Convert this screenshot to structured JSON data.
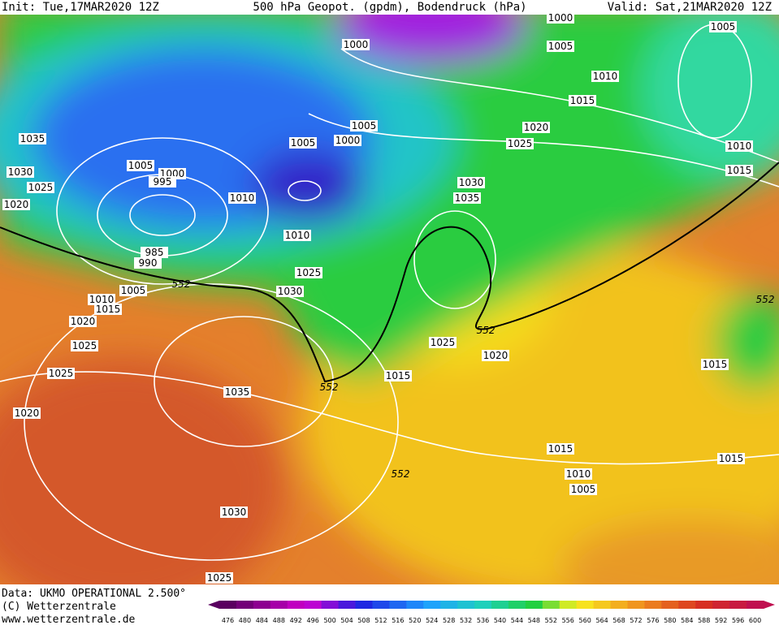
{
  "header": {
    "init": "Init: Tue,17MAR2020 12Z",
    "title": "500 hPa Geopot. (gpdm), Bodendruck (hPa)",
    "valid": "Valid: Sat,21MAR2020 12Z"
  },
  "map": {
    "isobar_labels": [
      1000,
      1000,
      1005,
      1005,
      1010,
      1015,
      1020,
      1025,
      1010,
      1015,
      1005,
      1000,
      1005,
      1035,
      1030,
      1025,
      1020,
      1005,
      1000,
      995,
      1010,
      1010,
      985,
      990,
      1030,
      1035,
      1025,
      1030,
      1005,
      1010,
      1015,
      1020,
      1025,
      1025,
      1025,
      1020,
      1015,
      1035,
      1020,
      1015,
      1015,
      1015,
      1010,
      1005,
      1030,
      1025
    ],
    "height_labels": [
      552,
      552,
      552,
      552,
      552
    ]
  },
  "footer": {
    "data": "Data: UKMO OPERATIONAL 2.500°",
    "copyright": "(C) Wetterzentrale",
    "url": "www.wetterzentrale.de"
  },
  "scale": [
    476,
    480,
    484,
    488,
    492,
    496,
    500,
    504,
    508,
    512,
    516,
    520,
    524,
    528,
    532,
    536,
    540,
    544,
    548,
    552,
    556,
    560,
    564,
    568,
    572,
    576,
    580,
    584,
    588,
    592,
    596,
    600
  ]
}
